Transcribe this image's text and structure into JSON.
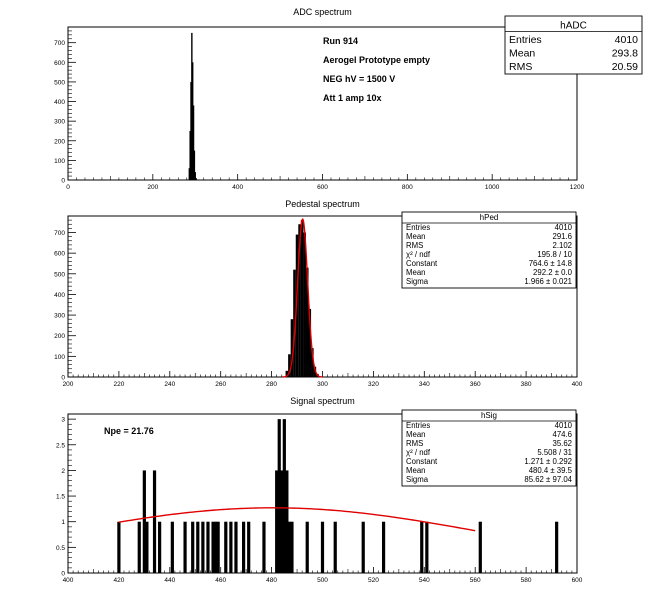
{
  "chart_data": [
    {
      "type": "bar",
      "title": "ADC spectrum",
      "xlim": [
        0,
        1200
      ],
      "ylim": [
        0,
        780
      ],
      "xticks": [
        0,
        200,
        400,
        600,
        800,
        1000,
        1200
      ],
      "yticks": [
        0,
        100,
        200,
        300,
        400,
        500,
        600,
        700
      ],
      "bins_x": [
        286,
        288,
        290,
        292,
        294,
        296,
        298,
        300,
        302
      ],
      "bins_y": [
        60,
        250,
        500,
        750,
        600,
        380,
        150,
        40,
        10
      ],
      "annotations": [
        "Run  914",
        "Aerogel Prototype empty",
        "NEG hV = 1500 V",
        "Att 1 amp 10x"
      ],
      "stats": {
        "title": "hADC",
        "rows": [
          [
            "Entries",
            "4010"
          ],
          [
            "Mean",
            "293.8"
          ],
          [
            "RMS",
            "20.59"
          ]
        ]
      }
    },
    {
      "type": "bar",
      "title": "Pedestal spectrum",
      "xlim": [
        200,
        400
      ],
      "ylim": [
        0,
        780
      ],
      "xticks": [
        200,
        220,
        240,
        260,
        280,
        300,
        320,
        340,
        360,
        380,
        400
      ],
      "yticks": [
        0,
        100,
        200,
        300,
        400,
        500,
        600,
        700
      ],
      "bins_x": [
        286,
        287,
        288,
        289,
        290,
        291,
        292,
        293,
        294,
        295,
        296,
        297,
        298
      ],
      "bins_y": [
        30,
        110,
        280,
        520,
        690,
        740,
        760,
        700,
        530,
        330,
        140,
        50,
        15
      ],
      "fit": {
        "type": "gaussian",
        "constant": 764.6,
        "mean": 292.2,
        "sigma": 1.966,
        "color": "#e00000"
      },
      "stats": {
        "title": "hPed",
        "rows": [
          [
            "Entries",
            "4010"
          ],
          [
            "Mean",
            "291.6"
          ],
          [
            "RMS",
            "2.102"
          ],
          [
            "χ² / ndf",
            "195.8 / 10"
          ],
          [
            "Constant",
            "764.6 ± 14.8"
          ],
          [
            "Mean",
            "292.2 ± 0.0"
          ],
          [
            "Sigma",
            "1.966 ± 0.021"
          ]
        ]
      }
    },
    {
      "type": "bar",
      "title": "Signal spectrum",
      "xlim": [
        400,
        600
      ],
      "ylim": [
        0,
        3.1
      ],
      "xticks": [
        400,
        420,
        440,
        460,
        480,
        500,
        520,
        540,
        560,
        580,
        600
      ],
      "yticks": [
        0,
        0.5,
        1,
        1.5,
        2,
        2.5,
        3
      ],
      "bins_x": [
        420,
        428,
        430,
        431,
        434,
        436,
        441,
        446,
        449,
        451,
        453,
        455,
        457,
        458,
        459,
        462,
        464,
        466,
        469,
        471,
        477,
        482,
        483,
        484,
        485,
        486,
        487,
        488,
        494,
        500,
        505,
        516,
        524,
        539,
        541,
        562,
        592
      ],
      "bins_y": [
        1,
        1,
        2,
        1,
        2,
        1,
        1,
        1,
        1,
        1,
        1,
        1,
        1,
        1,
        1,
        1,
        1,
        1,
        1,
        1,
        1,
        2,
        3,
        2,
        3,
        2,
        1,
        1,
        1,
        1,
        1,
        1,
        1,
        1,
        1,
        1,
        1
      ],
      "fit": {
        "type": "gaussian",
        "constant": 1.271,
        "mean": 480.4,
        "sigma": 85.62,
        "range": [
          420,
          560
        ],
        "color": "#e00000"
      },
      "annotations": [
        "Npe = 21.76"
      ],
      "stats": {
        "title": "hSig",
        "rows": [
          [
            "Entries",
            "4010"
          ],
          [
            "Mean",
            "474.6"
          ],
          [
            "RMS",
            "35.62"
          ],
          [
            "χ² / ndf",
            "5.508 / 31"
          ],
          [
            "Constant",
            "1.271 ± 0.292"
          ],
          [
            "Mean",
            "480.4 ± 39.5"
          ],
          [
            "Sigma",
            "85.62 ± 97.04"
          ]
        ]
      }
    }
  ]
}
